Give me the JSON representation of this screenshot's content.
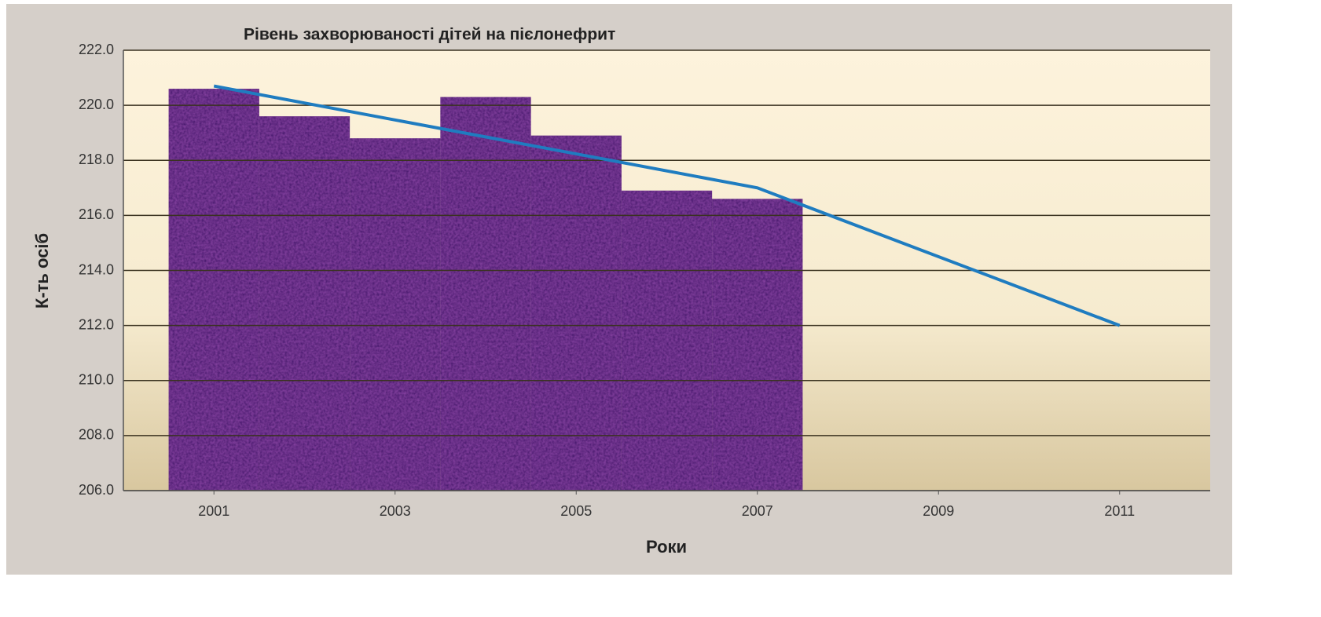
{
  "chart_data": {
    "type": "bar",
    "title": "Рівень захворюваності дітей на пієлонефрит",
    "x_label": "Роки",
    "y_label": "К-ть осіб",
    "series": [
      {
        "type": "bar",
        "color": "#3b1266",
        "x": [
          2001,
          2002,
          2003,
          2004,
          2005,
          2006,
          2007
        ],
        "values": [
          220.6,
          219.6,
          218.8,
          220.3,
          218.9,
          216.9,
          216.6
        ]
      },
      {
        "type": "line",
        "color": "#1f7cc0",
        "x": [
          2001,
          2007,
          2011
        ],
        "values": [
          220.7,
          217.0,
          212.0
        ]
      }
    ],
    "xlim": [
      2000,
      2012
    ],
    "xticks": [
      2001,
      2003,
      2005,
      2007,
      2009,
      2011
    ],
    "ylim": [
      206,
      222
    ],
    "yticks": [
      {
        "value": 206,
        "label": "206.0"
      },
      {
        "value": 208,
        "label": "208.0"
      },
      {
        "value": 210,
        "label": "210.0"
      },
      {
        "value": 212,
        "label": "212.0"
      },
      {
        "value": 214,
        "label": "214.0"
      },
      {
        "value": 216,
        "label": "216.0"
      },
      {
        "value": 218,
        "label": "218.0"
      },
      {
        "value": 220,
        "label": "220.0"
      },
      {
        "value": 222,
        "label": "222.0"
      }
    ],
    "grid": true
  }
}
